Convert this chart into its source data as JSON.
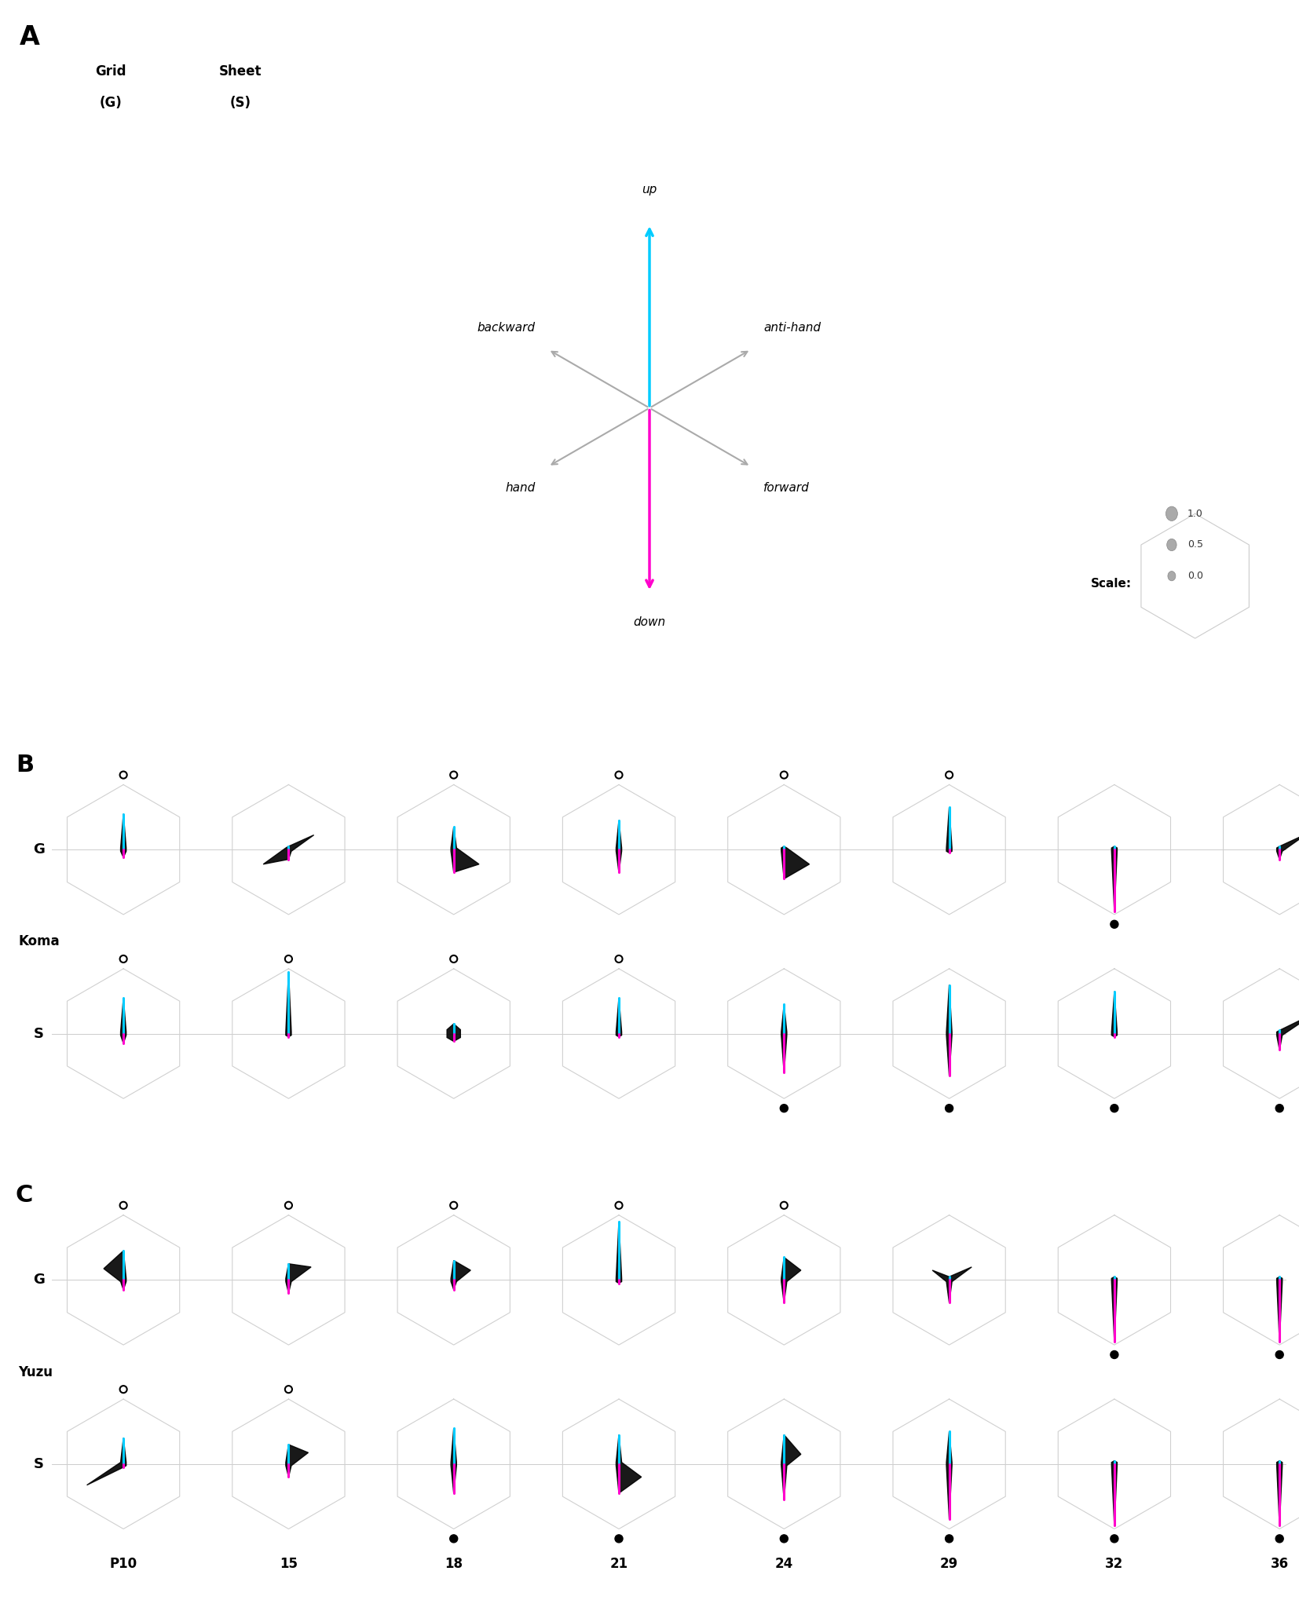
{
  "figure_width": 16.54,
  "figure_height": 20.38,
  "background_color": "#ffffff",
  "panel_A_label": "A",
  "panel_B_label": "B",
  "panel_C_label": "C",
  "grid_label": "G",
  "sheet_label": "S",
  "subject_B": "Koma",
  "subject_C": "Yuzu",
  "time_points": [
    "P10",
    "15",
    "18",
    "21",
    "24",
    "29",
    "32",
    "36"
  ],
  "cyan_color": "#00ccff",
  "magenta_color": "#ff00cc",
  "hex_edge_color": "#cccccc",
  "koma_G": [
    {
      "up": 0.55,
      "anti_hand": 0.05,
      "forward": 0.05,
      "down": 0.12,
      "hand": 0.05,
      "backward": 0.05,
      "climb": true,
      "jump": false
    },
    {
      "up": 0.05,
      "anti_hand": 0.45,
      "forward": 0.05,
      "down": 0.15,
      "hand": 0.45,
      "backward": 0.05,
      "climb": false,
      "jump": false
    },
    {
      "up": 0.35,
      "anti_hand": 0.05,
      "forward": 0.45,
      "down": 0.35,
      "hand": 0.05,
      "backward": 0.05,
      "climb": true,
      "jump": false
    },
    {
      "up": 0.45,
      "anti_hand": 0.05,
      "forward": 0.05,
      "down": 0.35,
      "hand": 0.05,
      "backward": 0.05,
      "climb": true,
      "jump": false
    },
    {
      "up": 0.05,
      "anti_hand": 0.05,
      "forward": 0.45,
      "down": 0.45,
      "hand": 0.05,
      "backward": 0.05,
      "climb": true,
      "jump": false
    },
    {
      "up": 0.65,
      "anti_hand": 0.05,
      "forward": 0.05,
      "down": 0.05,
      "hand": 0.05,
      "backward": 0.05,
      "climb": true,
      "jump": false
    },
    {
      "up": 0.05,
      "anti_hand": 0.05,
      "forward": 0.05,
      "down": 0.95,
      "hand": 0.05,
      "backward": 0.05,
      "climb": false,
      "jump": true
    },
    {
      "up": 0.05,
      "anti_hand": 0.5,
      "forward": 0.05,
      "down": 0.15,
      "hand": 0.05,
      "backward": 0.05,
      "climb": false,
      "jump": false
    }
  ],
  "koma_S": [
    {
      "up": 0.55,
      "anti_hand": 0.05,
      "forward": 0.05,
      "down": 0.15,
      "hand": 0.05,
      "backward": 0.05,
      "climb": true,
      "jump": false
    },
    {
      "up": 0.95,
      "anti_hand": 0.05,
      "forward": 0.05,
      "down": 0.05,
      "hand": 0.05,
      "backward": 0.05,
      "climb": true,
      "jump": false
    },
    {
      "up": 0.15,
      "anti_hand": 0.12,
      "forward": 0.12,
      "down": 0.12,
      "hand": 0.12,
      "backward": 0.12,
      "climb": true,
      "jump": false
    },
    {
      "up": 0.55,
      "anti_hand": 0.05,
      "forward": 0.05,
      "down": 0.05,
      "hand": 0.05,
      "backward": 0.05,
      "climb": true,
      "jump": false
    },
    {
      "up": 0.45,
      "anti_hand": 0.05,
      "forward": 0.05,
      "down": 0.6,
      "hand": 0.05,
      "backward": 0.05,
      "climb": false,
      "jump": true
    },
    {
      "up": 0.75,
      "anti_hand": 0.05,
      "forward": 0.05,
      "down": 0.65,
      "hand": 0.05,
      "backward": 0.05,
      "climb": false,
      "jump": true
    },
    {
      "up": 0.65,
      "anti_hand": 0.05,
      "forward": 0.05,
      "down": 0.05,
      "hand": 0.05,
      "backward": 0.05,
      "climb": false,
      "jump": true
    },
    {
      "up": 0.05,
      "anti_hand": 0.65,
      "forward": 0.05,
      "down": 0.25,
      "hand": 0.05,
      "backward": 0.05,
      "climb": false,
      "jump": true
    }
  ],
  "yuzu_G": [
    {
      "up": 0.45,
      "anti_hand": 0.05,
      "forward": 0.05,
      "down": 0.15,
      "hand": 0.05,
      "backward": 0.35,
      "climb": true,
      "jump": false
    },
    {
      "up": 0.25,
      "anti_hand": 0.4,
      "forward": 0.05,
      "down": 0.2,
      "hand": 0.05,
      "backward": 0.05,
      "climb": true,
      "jump": false
    },
    {
      "up": 0.3,
      "anti_hand": 0.3,
      "forward": 0.05,
      "down": 0.15,
      "hand": 0.05,
      "backward": 0.05,
      "climb": true,
      "jump": false
    },
    {
      "up": 0.9,
      "anti_hand": 0.05,
      "forward": 0.05,
      "down": 0.05,
      "hand": 0.05,
      "backward": 0.05,
      "climb": true,
      "jump": false
    },
    {
      "up": 0.35,
      "anti_hand": 0.3,
      "forward": 0.05,
      "down": 0.35,
      "hand": 0.05,
      "backward": 0.05,
      "climb": true,
      "jump": false
    },
    {
      "up": 0.05,
      "anti_hand": 0.4,
      "forward": 0.05,
      "down": 0.35,
      "hand": 0.05,
      "backward": 0.3,
      "climb": false,
      "jump": false
    },
    {
      "up": 0.05,
      "anti_hand": 0.05,
      "forward": 0.05,
      "down": 0.95,
      "hand": 0.05,
      "backward": 0.05,
      "climb": false,
      "jump": true
    },
    {
      "up": 0.05,
      "anti_hand": 0.05,
      "forward": 0.05,
      "down": 0.95,
      "hand": 0.05,
      "backward": 0.05,
      "climb": false,
      "jump": true
    }
  ],
  "yuzu_S": [
    {
      "up": 0.4,
      "anti_hand": 0.05,
      "forward": 0.05,
      "down": 0.05,
      "hand": 0.65,
      "backward": 0.05,
      "climb": true,
      "jump": false
    },
    {
      "up": 0.3,
      "anti_hand": 0.35,
      "forward": 0.05,
      "down": 0.2,
      "hand": 0.05,
      "backward": 0.05,
      "climb": true,
      "jump": false
    },
    {
      "up": 0.55,
      "anti_hand": 0.05,
      "forward": 0.05,
      "down": 0.45,
      "hand": 0.05,
      "backward": 0.05,
      "climb": false,
      "jump": true
    },
    {
      "up": 0.45,
      "anti_hand": 0.05,
      "forward": 0.4,
      "down": 0.45,
      "hand": 0.05,
      "backward": 0.05,
      "climb": false,
      "jump": true
    },
    {
      "up": 0.45,
      "anti_hand": 0.3,
      "forward": 0.05,
      "down": 0.55,
      "hand": 0.05,
      "backward": 0.05,
      "climb": false,
      "jump": true
    },
    {
      "up": 0.5,
      "anti_hand": 0.05,
      "forward": 0.05,
      "down": 0.85,
      "hand": 0.05,
      "backward": 0.05,
      "climb": false,
      "jump": true
    },
    {
      "up": 0.05,
      "anti_hand": 0.05,
      "forward": 0.05,
      "down": 0.95,
      "hand": 0.05,
      "backward": 0.05,
      "climb": false,
      "jump": true
    },
    {
      "up": 0.05,
      "anti_hand": 0.05,
      "forward": 0.05,
      "down": 0.95,
      "hand": 0.05,
      "backward": 0.05,
      "climb": false,
      "jump": true
    }
  ]
}
